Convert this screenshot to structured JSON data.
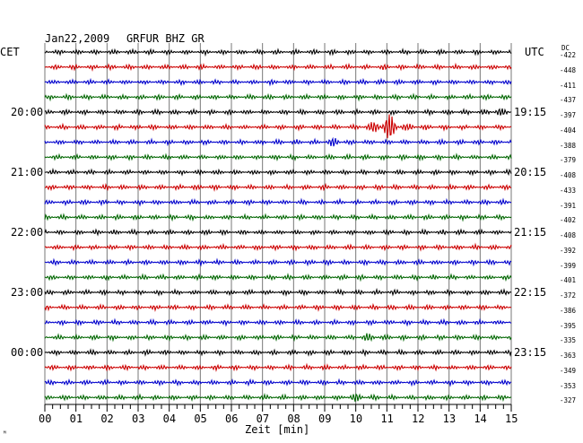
{
  "header": {
    "date": "Jan22,2009",
    "station": "GRFUR BHZ GR",
    "left_tz": "CET",
    "right_tz": "UTC",
    "dc_label": "DC"
  },
  "chart_data": {
    "type": "line",
    "title": "Jan22,2009   GRFUR BHZ GR",
    "xlabel": "Zeit [min]",
    "ylabel": "",
    "xlim": [
      0,
      15
    ],
    "x_ticks": [
      "00",
      "01",
      "02",
      "03",
      "04",
      "05",
      "06",
      "07",
      "08",
      "09",
      "10",
      "11",
      "12",
      "13",
      "14",
      "15"
    ],
    "trace_minutes": 15,
    "trace_count": 24,
    "trace_colors": [
      "#000000",
      "#cc0000",
      "#0000cc",
      "#006600"
    ],
    "left_time_labels": [
      {
        "trace": 4,
        "label": "20:00"
      },
      {
        "trace": 8,
        "label": "21:00"
      },
      {
        "trace": 12,
        "label": "22:00"
      },
      {
        "trace": 16,
        "label": "23:00"
      },
      {
        "trace": 20,
        "label": "00:00"
      }
    ],
    "right_time_labels": [
      {
        "trace": 4,
        "label": "19:15"
      },
      {
        "trace": 8,
        "label": "20:15"
      },
      {
        "trace": 12,
        "label": "21:15"
      },
      {
        "trace": 16,
        "label": "22:15"
      },
      {
        "trace": 20,
        "label": "23:15"
      }
    ],
    "dc_offsets": [
      -422,
      -448,
      -411,
      -437,
      -397,
      -404,
      -388,
      -379,
      -408,
      -433,
      -391,
      -402,
      -408,
      -392,
      -399,
      -401,
      -372,
      -386,
      -395,
      -335,
      -363,
      -349,
      -353,
      -327
    ],
    "events": [
      {
        "trace": 5,
        "minute": 11.0,
        "description": "high amplitude wave packet"
      },
      {
        "trace": 6,
        "minute": 9.3,
        "description": "small burst"
      },
      {
        "trace": 4,
        "minute": 14.6,
        "description": "small burst"
      },
      {
        "trace": 19,
        "minute": 10.5,
        "description": "small burst"
      },
      {
        "trace": 23,
        "minute": 10.0,
        "description": "small burst"
      }
    ]
  },
  "footer": {
    "corner_mark": "ᴹ"
  }
}
